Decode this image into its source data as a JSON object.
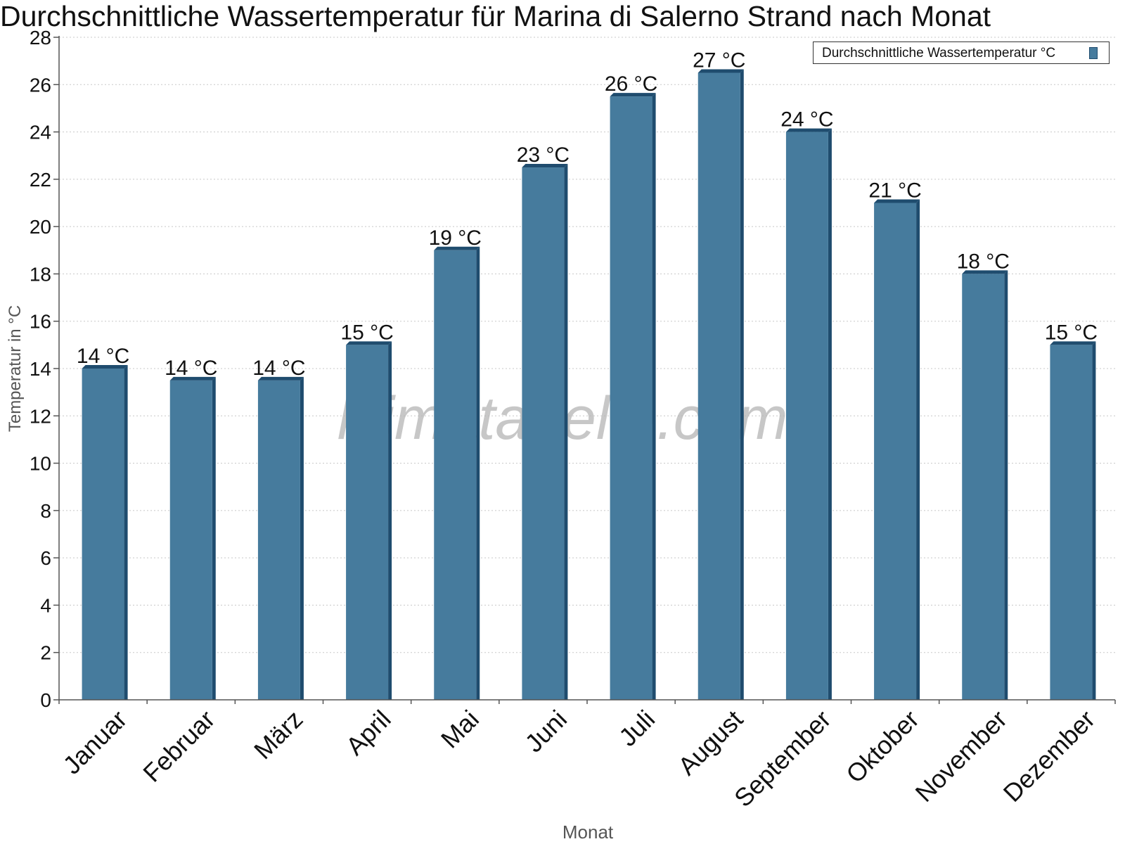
{
  "chart_data": {
    "type": "bar",
    "title": "Durchschnittliche Wassertemperatur für Marina di Salerno Strand nach Monat",
    "xlabel": "Monat",
    "ylabel": "Temperatur in °C",
    "ylim": [
      0,
      28
    ],
    "yticks": [
      "0",
      "2",
      "4",
      "6",
      "8",
      "10",
      "12",
      "14",
      "16",
      "18",
      "20",
      "22",
      "24",
      "26",
      "28"
    ],
    "grid": true,
    "legend_position": "top-right",
    "categories": [
      "Januar",
      "Februar",
      "März",
      "April",
      "Mai",
      "Juni",
      "Juli",
      "August",
      "September",
      "Oktober",
      "November",
      "Dezember"
    ],
    "series": [
      {
        "name": "Durchschnittliche Wassertemperatur °C",
        "values": [
          14.0,
          13.5,
          13.5,
          15.0,
          19.0,
          22.5,
          25.5,
          26.5,
          24.0,
          21.0,
          18.0,
          15.0
        ],
        "data_labels": [
          "14 °C",
          "14 °C",
          "14 °C",
          "15 °C",
          "19 °C",
          "23 °C",
          "26 °C",
          "27 °C",
          "24 °C",
          "21 °C",
          "18 °C",
          "15 °C"
        ]
      }
    ],
    "watermark": "klimatabelle.com",
    "colors": {
      "bar_fill": "#467b9d",
      "bar_dark": "#1f4c6e",
      "grid": "#c8c8c8",
      "axis": "#555555",
      "axis_label": "#555555",
      "watermark": "#b4b4b4"
    }
  }
}
